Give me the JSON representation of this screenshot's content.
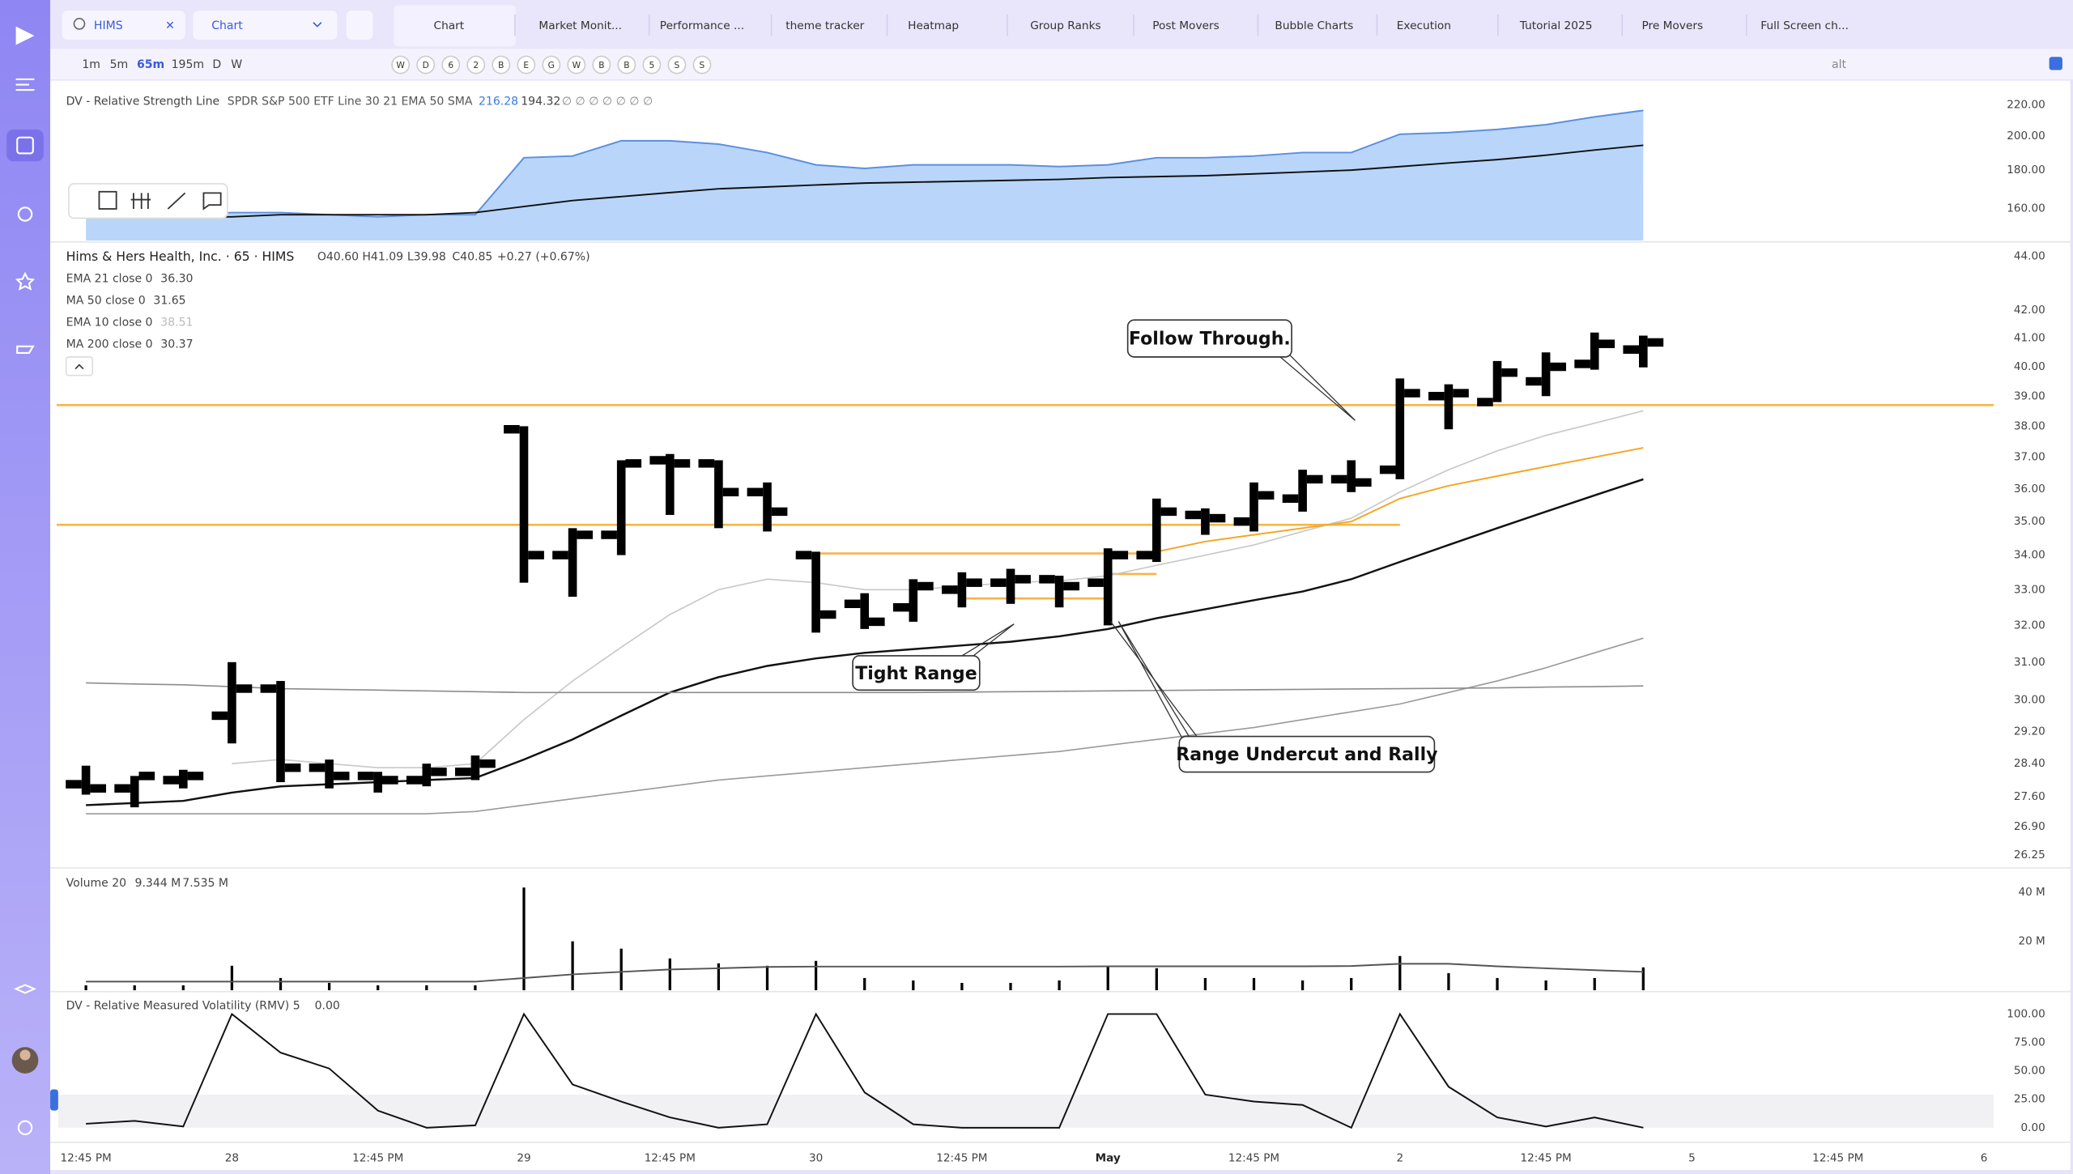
{
  "search": "HIMS",
  "layout_select": "Chart",
  "tabs": [
    "Chart",
    "Market Monit...",
    "Performance ...",
    "theme tracker",
    "Heatmap",
    "Group Ranks",
    "Post Movers",
    "Bubble Charts",
    "Execution",
    "Tutorial 2025",
    "Pre Movers",
    "Full Screen ch..."
  ],
  "timeframes": [
    "1m",
    "5m",
    "65m",
    "195m",
    "D",
    "W"
  ],
  "quick_buttons": [
    "W",
    "D",
    "6",
    "2",
    "B",
    "E",
    "G",
    "W",
    "B",
    "B",
    "5",
    "S",
    "S"
  ],
  "alt_label": "alt",
  "annotations": [
    "Follow Through.",
    "Tight Range",
    "Range Undercut and Rally"
  ],
  "chart_data": [
    {
      "type": "area",
      "title": "DV - Relative Strength Line",
      "subtitle": "SPDR S&P 500 ETF Line 30 21 EMA 50 SMA",
      "log": true,
      "ylim": [
        145,
        236
      ],
      "yticks": [
        {
          "value": 220,
          "label": "220.00"
        },
        {
          "value": 200,
          "label": "200.00"
        },
        {
          "value": 180,
          "label": "180.00"
        },
        {
          "value": 160,
          "label": "160.00"
        }
      ],
      "series": [
        {
          "color": "#5b8fe0",
          "fill": "#b9d6fa",
          "value_label": "216.28",
          "values": [
            156,
            156,
            157,
            158,
            158,
            157,
            156,
            157,
            157,
            187,
            188,
            197,
            197,
            195,
            190,
            183,
            181,
            183,
            183,
            183,
            182,
            183,
            187,
            187,
            188,
            190,
            190,
            201,
            202,
            204,
            207,
            212,
            216.28
          ]
        },
        {
          "color": "#111111",
          "value_label": "194.32",
          "values": [
            156,
            156,
            156,
            156,
            157,
            157,
            157,
            157,
            158,
            161,
            164,
            166,
            168,
            170,
            171,
            172,
            173,
            173.5,
            174,
            174.5,
            175,
            176,
            176.5,
            177,
            178,
            179,
            180,
            182,
            184,
            186,
            188.5,
            191.5,
            194.32
          ]
        }
      ]
    },
    {
      "type": "ohlc",
      "title": "Hims & Hers Health, Inc. · 65 · HIMS",
      "ohlc_labels": [
        "O40.60",
        "H41.09",
        "L39.98",
        "C40.85"
      ],
      "change": "+0.27 (+0.67%)",
      "log": true,
      "ylim": [
        26,
        44.5
      ],
      "color": "#000000",
      "yticks": [
        {
          "value": 44,
          "label": "44.00"
        },
        {
          "value": 42,
          "label": "42.00"
        },
        {
          "value": 41,
          "label": "41.00"
        },
        {
          "value": 40,
          "label": "40.00"
        },
        {
          "value": 39,
          "label": "39.00"
        },
        {
          "value": 38,
          "label": "38.00"
        },
        {
          "value": 37,
          "label": "37.00"
        },
        {
          "value": 36,
          "label": "36.00"
        },
        {
          "value": 35,
          "label": "35.00"
        },
        {
          "value": 34,
          "label": "34.00"
        },
        {
          "value": 33,
          "label": "33.00"
        },
        {
          "value": 32,
          "label": "32.00"
        },
        {
          "value": 31,
          "label": "31.00"
        },
        {
          "value": 30,
          "label": "30.00"
        },
        {
          "value": 29.2,
          "label": "29.20"
        },
        {
          "value": 28.4,
          "label": "28.40"
        },
        {
          "value": 27.6,
          "label": "27.60"
        },
        {
          "value": 26.9,
          "label": "26.90"
        },
        {
          "value": 26.25,
          "label": "26.25"
        }
      ],
      "open": [
        27.9,
        27.8,
        28.0,
        29.6,
        30.3,
        28.3,
        28.1,
        28.0,
        28.2,
        37.9,
        34.0,
        34.6,
        36.9,
        36.8,
        35.9,
        34.0,
        32.6,
        32.5,
        33.0,
        33.2,
        33.3,
        33.2,
        34.0,
        35.2,
        35.0,
        35.7,
        36.3,
        36.6,
        39.0,
        38.8,
        39.5,
        40.1,
        40.6
      ],
      "high": [
        28.35,
        28.1,
        28.25,
        31.0,
        30.5,
        28.5,
        28.2,
        28.4,
        28.6,
        38.0,
        34.8,
        36.9,
        37.1,
        36.9,
        36.2,
        34.1,
        32.9,
        33.3,
        33.5,
        33.6,
        33.4,
        34.2,
        35.7,
        35.4,
        36.2,
        36.6,
        36.9,
        39.6,
        39.4,
        40.2,
        40.5,
        41.2,
        41.09
      ],
      "low": [
        27.65,
        27.35,
        27.8,
        28.9,
        27.95,
        27.8,
        27.7,
        27.85,
        28.0,
        33.2,
        32.8,
        34.0,
        35.2,
        34.8,
        34.7,
        31.8,
        31.9,
        32.1,
        32.5,
        32.6,
        32.5,
        32.0,
        33.8,
        34.6,
        34.7,
        35.3,
        35.9,
        36.3,
        37.9,
        38.8,
        39.0,
        39.9,
        39.98
      ],
      "close": [
        27.8,
        28.1,
        28.1,
        30.3,
        28.3,
        28.1,
        28.0,
        28.2,
        28.4,
        34.0,
        34.6,
        36.8,
        36.8,
        35.9,
        35.3,
        32.3,
        32.1,
        33.1,
        33.2,
        33.3,
        33.1,
        34.0,
        35.3,
        35.1,
        35.8,
        36.3,
        36.2,
        39.1,
        39.1,
        39.8,
        40.0,
        40.8,
        40.85
      ],
      "level_color": "#f7b44a",
      "levels": [
        {
          "value": 38.7,
          "from": -0.6,
          "to": 39.2
        },
        {
          "value": 34.9,
          "from": -0.6,
          "to": 27
        },
        {
          "value": 34.05,
          "from": 15,
          "to": 22
        },
        {
          "value": 33.45,
          "from": 21,
          "to": 22
        },
        {
          "value": 32.75,
          "from": 18,
          "to": 21
        }
      ],
      "series": [
        {
          "name": "EMA 21 close 0",
          "value_label": "36.30",
          "color": "#111111",
          "width": 1.5,
          "values": [
            27.4,
            27.45,
            27.5,
            27.7,
            27.85,
            27.9,
            27.95,
            28.0,
            28.05,
            28.5,
            29.0,
            29.6,
            30.2,
            30.6,
            30.9,
            31.1,
            31.25,
            31.35,
            31.45,
            31.55,
            31.7,
            31.9,
            32.2,
            32.45,
            32.7,
            32.95,
            33.3,
            33.8,
            34.3,
            34.8,
            35.3,
            35.8,
            36.3
          ]
        },
        {
          "name": "MA 50 close 0",
          "value_label": "31.65",
          "color": "#9a9a9a",
          "width": 1,
          "values": [
            27.2,
            27.2,
            27.2,
            27.2,
            27.2,
            27.2,
            27.2,
            27.2,
            27.25,
            27.4,
            27.55,
            27.7,
            27.85,
            28.0,
            28.1,
            28.2,
            28.3,
            28.4,
            28.5,
            28.6,
            28.7,
            28.85,
            29.0,
            29.15,
            29.3,
            29.5,
            29.7,
            29.9,
            30.2,
            30.5,
            30.85,
            31.25,
            31.65
          ]
        },
        {
          "name": "EMA 10 close 0",
          "value_label": "38.51",
          "muted": true,
          "color": "#c8c8c8",
          "width": 1,
          "values": [
            null,
            null,
            null,
            28.4,
            28.5,
            28.4,
            28.3,
            28.3,
            28.4,
            29.5,
            30.5,
            31.4,
            32.3,
            33.0,
            33.3,
            33.2,
            33.0,
            33.0,
            33.1,
            33.2,
            33.25,
            33.4,
            33.7,
            34.0,
            34.3,
            34.7,
            35.1,
            35.9,
            36.6,
            37.2,
            37.7,
            38.1,
            38.51
          ]
        },
        {
          "name": "MA 200 close 0",
          "value_label": "30.37",
          "color": "#8c8c8c",
          "width": 1,
          "values": [
            30.45,
            30.42,
            30.4,
            30.35,
            30.3,
            30.28,
            30.26,
            30.24,
            30.22,
            30.2,
            30.2,
            30.2,
            30.2,
            30.2,
            30.2,
            30.2,
            30.2,
            30.2,
            30.21,
            30.22,
            30.23,
            30.24,
            30.25,
            30.26,
            30.27,
            30.28,
            30.29,
            30.3,
            30.31,
            30.32,
            30.34,
            30.35,
            30.37
          ]
        },
        {
          "color": "#f5a623",
          "width": 1.2,
          "values": [
            null,
            null,
            null,
            null,
            null,
            null,
            null,
            null,
            null,
            null,
            null,
            null,
            null,
            null,
            null,
            null,
            null,
            null,
            null,
            null,
            null,
            null,
            34.1,
            34.4,
            34.6,
            34.8,
            35.0,
            35.7,
            36.1,
            36.4,
            36.7,
            37.0,
            37.3
          ]
        }
      ]
    },
    {
      "type": "bar",
      "title": "Volume 20",
      "legend_values": [
        "9.344 M",
        "7.535 M"
      ],
      "ylim": [
        0,
        49.2
      ],
      "color": "#000000",
      "yticks": [
        {
          "value": 40,
          "label": "40 M"
        },
        {
          "value": 20,
          "label": "20 M"
        }
      ],
      "values": [
        2,
        2,
        2,
        10,
        5,
        3,
        2,
        2,
        2,
        42,
        20,
        17,
        13,
        11,
        10,
        12,
        5,
        4,
        3,
        3,
        4,
        10,
        9,
        5,
        5,
        4,
        5,
        14,
        7,
        5,
        4,
        5,
        9.344
      ],
      "series": [
        {
          "color": "#555555",
          "values": [
            3.5,
            3.5,
            3.5,
            3.5,
            3.5,
            3.5,
            3.5,
            3.5,
            3.5,
            5,
            6.5,
            7.5,
            8.5,
            9,
            9.5,
            9.7,
            9.7,
            9.7,
            9.7,
            9.7,
            9.7,
            9.8,
            9.8,
            9.8,
            9.8,
            9.8,
            9.9,
            10.8,
            10.8,
            9.8,
            9.0,
            8.2,
            7.535
          ]
        }
      ]
    },
    {
      "type": "line",
      "title": "DV - Relative Measured Volatility (RMV) 5",
      "ylim": [
        -10.5,
        117.4
      ],
      "yticks": [
        {
          "value": 100,
          "label": "100.00"
        },
        {
          "value": 75,
          "label": "75.00"
        },
        {
          "value": 50,
          "label": "50.00"
        },
        {
          "value": 25,
          "label": "25.00"
        },
        {
          "value": 0,
          "label": "0.00"
        }
      ],
      "series": [
        {
          "color": "#111111",
          "value_label": "0.00",
          "values": [
            3.5,
            6,
            1,
            100,
            66,
            52,
            15,
            0,
            2,
            100,
            38,
            23,
            9,
            0,
            3,
            100,
            31,
            3,
            0,
            0,
            0,
            100,
            100,
            29,
            23,
            20,
            0,
            100,
            36,
            9,
            1,
            9,
            0
          ]
        }
      ],
      "xlim": [
        -0.57,
        39.2
      ],
      "xticks": [
        {
          "value": 0,
          "label": "12:45 PM"
        },
        {
          "value": 3,
          "label": "28"
        },
        {
          "value": 6,
          "label": "12:45 PM"
        },
        {
          "value": 9,
          "label": "29"
        },
        {
          "value": 12,
          "label": "12:45 PM"
        },
        {
          "value": 15,
          "label": "30"
        },
        {
          "value": 18,
          "label": "12:45 PM"
        },
        {
          "value": 21,
          "label": "May"
        },
        {
          "value": 24,
          "label": "12:45 PM"
        },
        {
          "value": 27,
          "label": "2"
        },
        {
          "value": 30,
          "label": "12:45 PM"
        },
        {
          "value": 33,
          "label": "5"
        },
        {
          "value": 36,
          "label": "12:45 PM"
        },
        {
          "value": 39,
          "label": "6"
        }
      ]
    }
  ]
}
